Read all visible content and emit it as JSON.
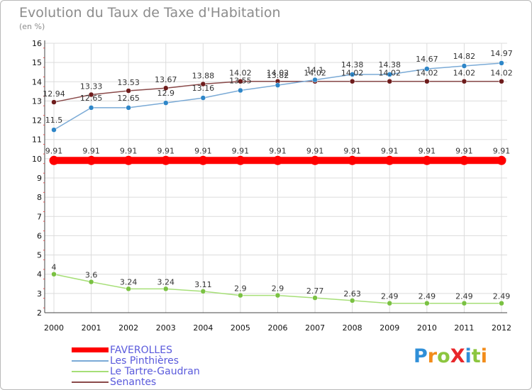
{
  "title": "Evolution du Taux de Taxe d'Habitation",
  "unit_label": "(en %)",
  "logo": {
    "text": "ProXiti",
    "letters": [
      "P",
      "r",
      "o",
      "X",
      "i",
      "t",
      "i"
    ],
    "colors": [
      "#2f8fd8",
      "#f28c1a",
      "#8cc63f",
      "#e8262a",
      "#2f8fd8",
      "#8cc63f",
      "#f28c1a"
    ]
  },
  "chart_data": {
    "type": "line",
    "title": "Evolution du Taux de Taxe d'Habitation",
    "ylabel": "(en %)",
    "xlabel": "",
    "ylim": [
      2,
      16
    ],
    "yticks": [
      "2",
      "3",
      "4",
      "5",
      "6",
      "7",
      "8",
      "9",
      "10",
      "11",
      "12",
      "13",
      "14",
      "15",
      "16"
    ],
    "categories": [
      "2000",
      "2001",
      "2002",
      "2003",
      "2004",
      "2005",
      "2006",
      "2007",
      "2008",
      "2009",
      "2010",
      "2011",
      "2012"
    ],
    "grid": true,
    "legend_position": "bottom-left",
    "series": [
      {
        "name": "FAVEROLLES",
        "color": "#ff0000",
        "values": [
          9.91,
          9.91,
          9.91,
          9.91,
          9.91,
          9.91,
          9.91,
          9.91,
          9.91,
          9.91,
          9.91,
          9.91,
          9.91
        ],
        "labels": [
          "9.91",
          "9.91",
          "9.91",
          "9.91",
          "9.91",
          "9.91",
          "9.91",
          "9.91",
          "9.91",
          "9.91",
          "9.91",
          "9.91",
          "9.91"
        ]
      },
      {
        "name": "Les Pinthières",
        "color": "#7aaad6",
        "marker": "#2e86c8",
        "values": [
          11.5,
          12.65,
          12.65,
          12.9,
          13.16,
          13.55,
          13.82,
          14.1,
          14.38,
          14.38,
          14.67,
          14.82,
          14.97
        ],
        "labels": [
          "11.5",
          "12.65",
          "12.65",
          "12.9",
          "13.16",
          "13.55",
          "13.82",
          "14.1",
          "14.38",
          "14.38",
          "14.67",
          "14.82",
          "14.97"
        ]
      },
      {
        "name": "Le Tartre-Gaudran",
        "color": "#a6df77",
        "marker": "#7ac142",
        "values": [
          4,
          3.6,
          3.24,
          3.24,
          3.11,
          2.9,
          2.9,
          2.77,
          2.63,
          2.49,
          2.49,
          2.49,
          2.49
        ],
        "labels": [
          "4",
          "3.6",
          "3.24",
          "3.24",
          "3.11",
          "2.9",
          "2.9",
          "2.77",
          "2.63",
          "2.49",
          "2.49",
          "2.49",
          "2.49"
        ]
      },
      {
        "name": "Senantes",
        "color": "#8a4a4a",
        "marker": "#6e1c1c",
        "values": [
          12.94,
          13.33,
          13.53,
          13.67,
          13.88,
          14.02,
          14.02,
          14.02,
          14.02,
          14.02,
          14.02,
          14.02,
          14.02
        ],
        "labels": [
          "12.94",
          "13.33",
          "13.53",
          "13.67",
          "13.88",
          "14.02",
          "14.02",
          "14.02",
          "14.02",
          "14.02",
          "14.02",
          "14.02",
          "14.02"
        ]
      }
    ]
  }
}
